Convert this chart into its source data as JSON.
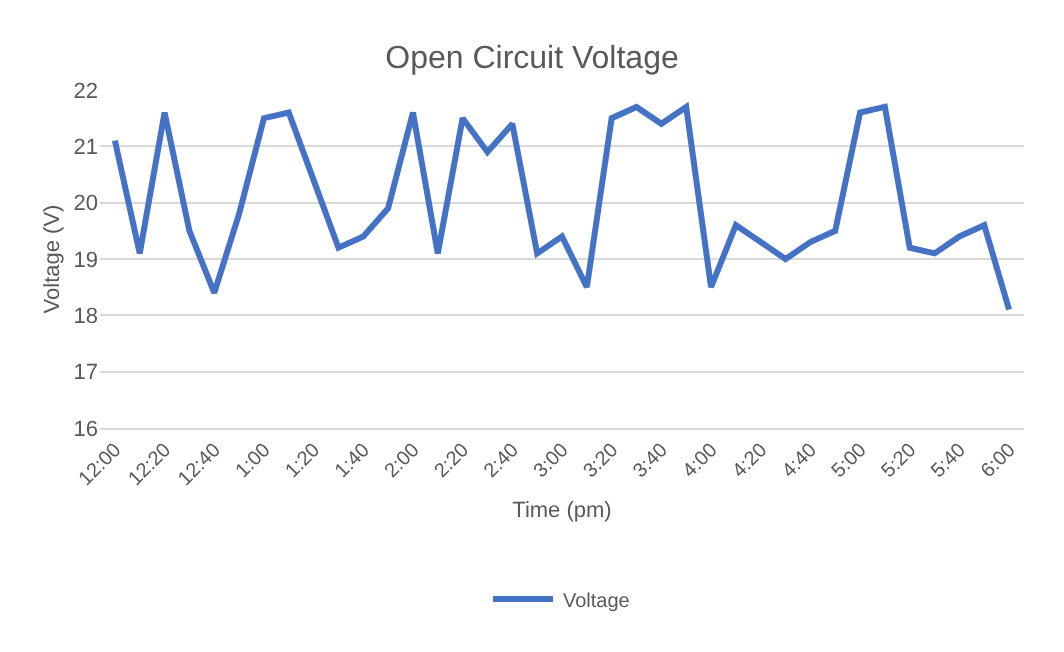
{
  "chart_data": {
    "type": "line",
    "title": "Open Circuit Voltage",
    "xlabel": "Time (pm)",
    "ylabel": "Voltage (V)",
    "categories": [
      "12:00",
      null,
      "12:20",
      null,
      "12:40",
      null,
      "1:00",
      null,
      "1:20",
      null,
      "1:40",
      null,
      "2:00",
      null,
      "2:20",
      null,
      "2:40",
      null,
      "3:00",
      null,
      "3:20",
      null,
      "3:40",
      null,
      "4:00",
      null,
      "4:20",
      null,
      "4:40",
      null,
      "5:00",
      null,
      "5:20",
      null,
      "5:40",
      null,
      "6:00"
    ],
    "series": [
      {
        "name": "Voltage",
        "color": "#4472c4",
        "values": [
          21.1,
          19.1,
          21.6,
          19.5,
          18.4,
          19.8,
          21.5,
          21.6,
          20.4,
          19.2,
          19.4,
          19.9,
          21.6,
          19.1,
          21.5,
          20.9,
          21.4,
          19.1,
          19.4,
          18.5,
          21.5,
          21.7,
          21.4,
          21.7,
          18.5,
          19.6,
          19.3,
          19.0,
          19.3,
          19.5,
          21.6,
          21.7,
          19.2,
          19.1,
          19.4,
          19.6,
          18.1
        ]
      }
    ],
    "ylim": [
      16,
      22
    ],
    "yticks": [
      16,
      17,
      18,
      19,
      20,
      21,
      22
    ],
    "grid": "y",
    "legend": "bottom",
    "marker": "none",
    "line_style": "solid"
  }
}
